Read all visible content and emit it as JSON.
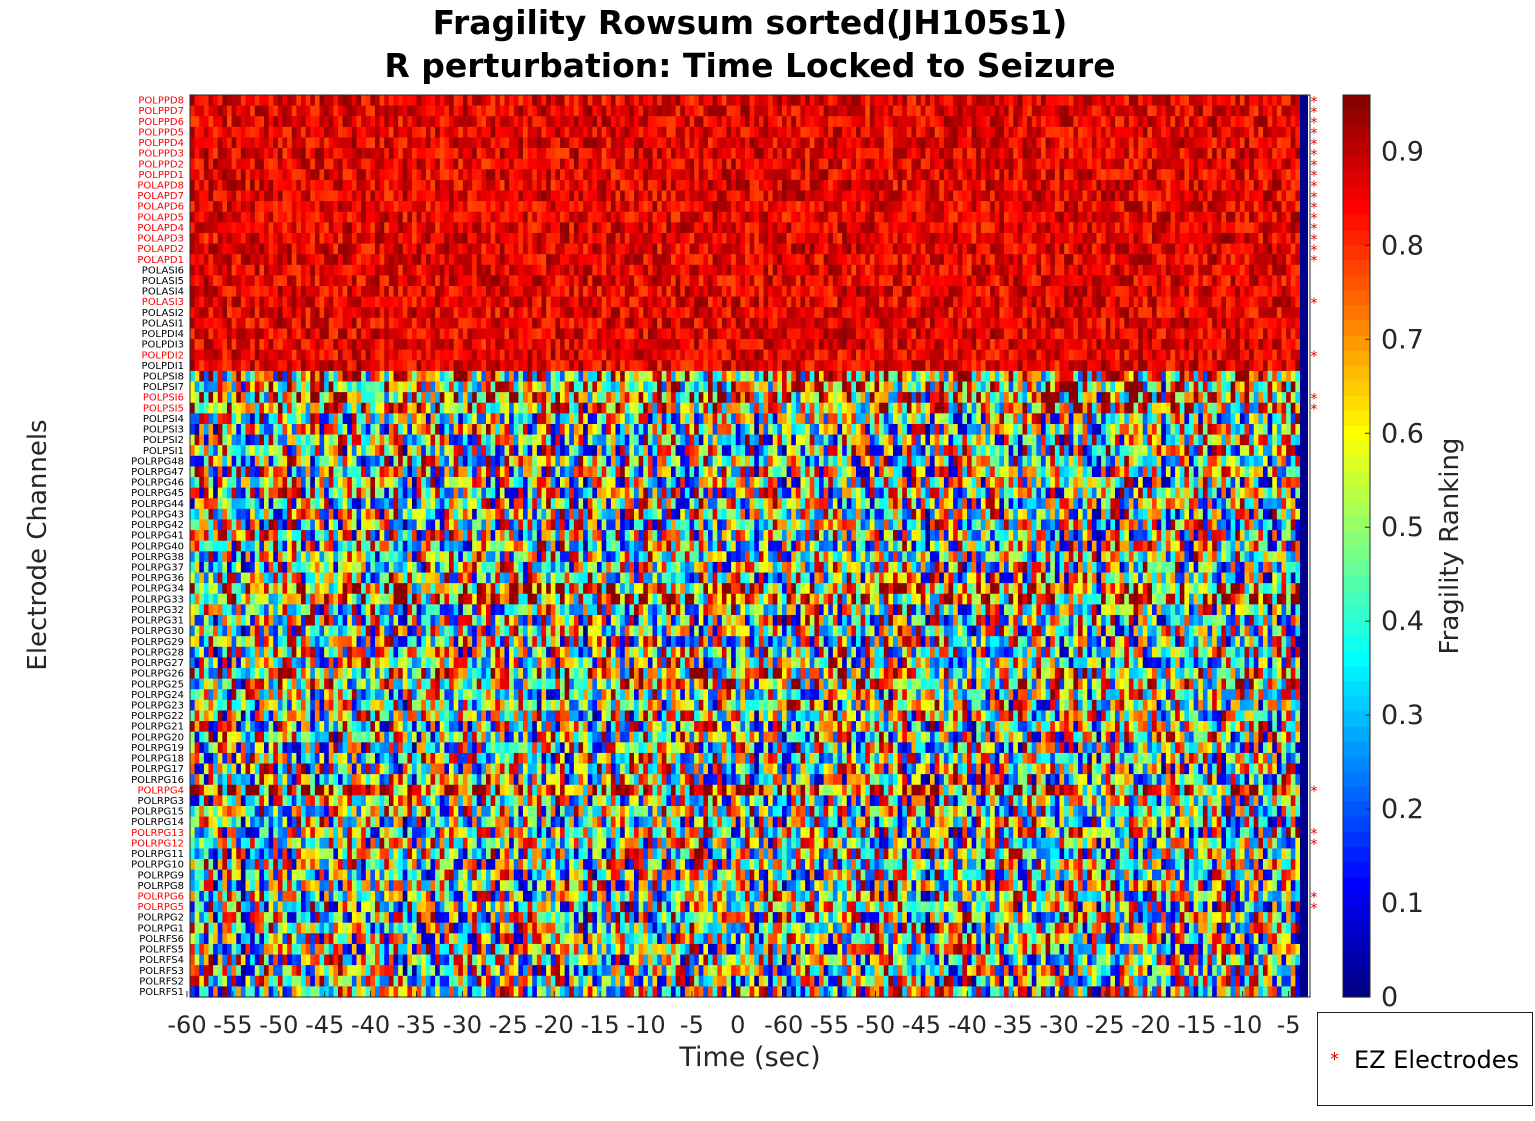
{
  "chart_data": {
    "type": "heatmap",
    "title": "Fragility Rowsum sorted(JH105s1)",
    "subtitle": "R perturbation:  Time Locked to Seizure",
    "xlabel": "Time (sec)",
    "ylabel": "Electrode Channels",
    "colorbar_label": "Fragility Ranking",
    "colormap": "jet",
    "clim": [
      0,
      0.96
    ],
    "colorbar_ticks": [
      "0",
      "0.1",
      "0.2",
      "0.3",
      "0.4",
      "0.5",
      "0.6",
      "0.7",
      "0.8",
      "0.9"
    ],
    "x_ticks": [
      "-60",
      "-55",
      "-50",
      "-45",
      "-40",
      "-35",
      "-30",
      "-25",
      "-20",
      "-15",
      "-10",
      "-5",
      "0",
      "-60",
      "-55",
      "-50",
      "-45",
      "-40",
      "-35",
      "-30",
      "-25",
      "-20",
      "-15",
      "-10",
      "-5"
    ],
    "n_time_windows": 240,
    "channels": [
      "POLPPD8",
      "POLPPD7",
      "POLPPD6",
      "POLPPD5",
      "POLPPD4",
      "POLPPD3",
      "POLPPD2",
      "POLPPD1",
      "POLAPD8",
      "POLAPD7",
      "POLAPD6",
      "POLAPD5",
      "POLAPD4",
      "POLAPD3",
      "POLAPD2",
      "POLAPD1",
      "POLASI6",
      "POLASI5",
      "POLASI4",
      "POLASI3",
      "POLASI2",
      "POLASI1",
      "POLPDI4",
      "POLPDI3",
      "POLPDI2",
      "POLPDI1",
      "POLPSI8",
      "POLPSI7",
      "POLPSI6",
      "POLPSI5",
      "POLPSI4",
      "POLPSI3",
      "POLPSI2",
      "POLPSI1",
      "POLRPG48",
      "POLRPG47",
      "POLRPG46",
      "POLRPG45",
      "POLRPG44",
      "POLRPG43",
      "POLRPG42",
      "POLRPG41",
      "POLRPG40",
      "POLRPG38",
      "POLRPG37",
      "POLRPG36",
      "POLRPG34",
      "POLRPG33",
      "POLRPG32",
      "POLRPG31",
      "POLRPG30",
      "POLRPG29",
      "POLRPG28",
      "POLRPG27",
      "POLRPG26",
      "POLRPG25",
      "POLRPG24",
      "POLRPG23",
      "POLRPG22",
      "POLRPG21",
      "POLRPG20",
      "POLRPG19",
      "POLRPG18",
      "POLRPG17",
      "POLRPG16",
      "POLRPG4",
      "POLRPG3",
      "POLRPG15",
      "POLRPG14",
      "POLRPG13",
      "POLRPG12",
      "POLRPG11",
      "POLRPG10",
      "POLRPG9",
      "POLRPG8",
      "POLRPG6",
      "POLRPG5",
      "POLRPG2",
      "POLRPG1",
      "POLRFS6",
      "POLRFS5",
      "POLRFS4",
      "POLRFS3",
      "POLRFS2",
      "POLRFS1"
    ],
    "ez_channels": [
      "POLPPD8",
      "POLPPD7",
      "POLPPD6",
      "POLPPD5",
      "POLPPD4",
      "POLPPD3",
      "POLPPD2",
      "POLPPD1",
      "POLAPD8",
      "POLAPD7",
      "POLAPD6",
      "POLAPD5",
      "POLAPD4",
      "POLAPD3",
      "POLAPD2",
      "POLAPD1",
      "POLASI3",
      "POLPDI2",
      "POLPSI6",
      "POLPSI5",
      "POLRPG4",
      "POLRPG13",
      "POLRPG12",
      "POLRPG6",
      "POLRPG5"
    ],
    "row_mean_fragility": {
      "high_group_rows": "POLPPD8 to POLPDI1",
      "high_group_value": 0.86,
      "mixed_group_value": 0.5,
      "elevated_rows": {
        "POLPSI8": 0.62,
        "POLPSI7": 0.64,
        "POLPSI6": 0.66,
        "POLPSI5": 0.66,
        "POLRPG34": 0.7,
        "POLRPG33": 0.68,
        "POLRPG26": 0.62,
        "POLRPG25": 0.6,
        "POLRPG4": 0.75
      }
    },
    "legend": {
      "entries": [
        "EZ Electrodes"
      ],
      "position": "bottom-right"
    },
    "colors": {
      "ez_label": "#ff0000",
      "normal_label": "#000000",
      "marker": "#e00000",
      "side_bar": "#00008f"
    }
  }
}
